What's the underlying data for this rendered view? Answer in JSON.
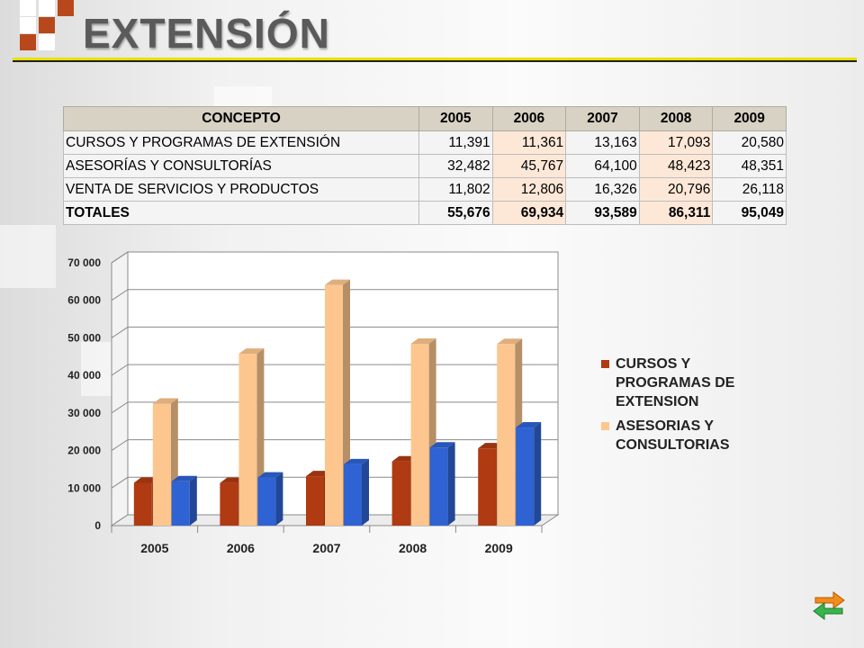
{
  "slide": {
    "title": "EXTENSIÓN"
  },
  "table": {
    "headers": [
      "CONCEPTO",
      "2005",
      "2006",
      "2007",
      "2008",
      "2009"
    ],
    "rows": [
      {
        "concept": "CURSOS Y PROGRAMAS  DE EXTENSIÓN",
        "values": [
          "11,391",
          "11,361",
          "13,163",
          "17,093",
          "20,580"
        ],
        "bold": false
      },
      {
        "concept": "ASESORÍAS Y CONSULTORÍAS",
        "values": [
          "32,482",
          "45,767",
          "64,100",
          "48,423",
          "48,351"
        ],
        "bold": false
      },
      {
        "concept": "VENTA DE SERVICIOS Y PRODUCTOS",
        "values": [
          "11,802",
          "12,806",
          "16,326",
          "20,796",
          "26,118"
        ],
        "bold": false
      },
      {
        "concept": "TOTALES",
        "values": [
          "55,676",
          "69,934",
          "93,589",
          "86,311",
          "95,049"
        ],
        "bold": true
      }
    ]
  },
  "chart_data": {
    "type": "bar",
    "categories": [
      "2005",
      "2006",
      "2007",
      "2008",
      "2009"
    ],
    "series": [
      {
        "name": "CURSOS Y PROGRAMAS DE EXTENSION",
        "values": [
          11391,
          11361,
          13163,
          17093,
          20580
        ],
        "color": "#b03a12"
      },
      {
        "name": "ASESORIAS Y CONSULTORIAS",
        "values": [
          32482,
          45767,
          64100,
          48423,
          48351
        ],
        "color": "#fcc68e"
      },
      {
        "name": "",
        "values": [
          11802,
          12806,
          16326,
          20796,
          26118
        ],
        "color": "#2f62d2"
      }
    ],
    "ylim": [
      0,
      70000
    ],
    "yticks": [
      "0",
      "10 000",
      "20 000",
      "30 000",
      "40 000",
      "50 000",
      "60 000",
      "70 000"
    ],
    "grid": true,
    "legend_position": "right",
    "style": "3d"
  },
  "nav": {
    "icon": "return-arrows-icon"
  }
}
